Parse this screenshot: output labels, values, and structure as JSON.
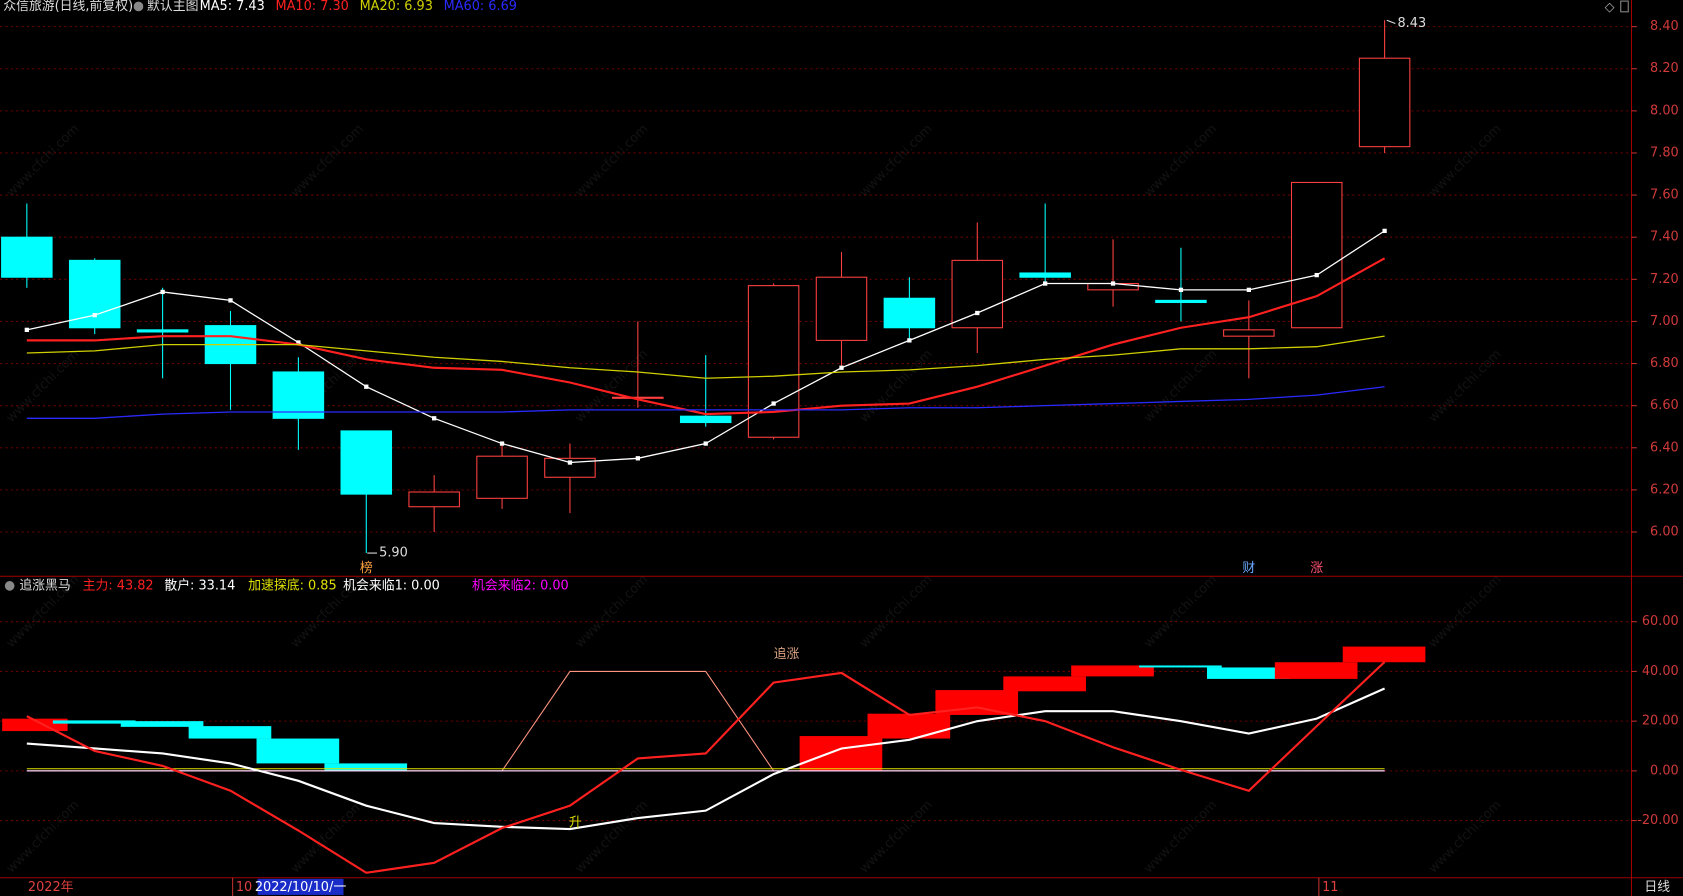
{
  "chart_data": [
    {
      "type": "candlestick",
      "title": "众信旅游(日线,前复权)",
      "subtitle": "默认主图",
      "open": [
        7.4,
        7.29,
        6.96,
        6.98,
        6.76,
        6.48,
        6.12,
        6.16,
        6.26,
        6.64,
        6.55,
        6.45,
        6.91,
        7.11,
        6.97,
        7.23,
        7.15,
        7.1,
        6.93,
        6.97,
        7.83
      ],
      "close": [
        7.21,
        6.97,
        6.95,
        6.8,
        6.54,
        6.18,
        6.19,
        6.36,
        6.35,
        6.64,
        6.52,
        7.17,
        7.21,
        6.97,
        7.29,
        7.21,
        7.18,
        7.09,
        6.96,
        7.66,
        8.25
      ],
      "high": [
        7.56,
        7.3,
        7.16,
        7.05,
        6.83,
        6.48,
        6.27,
        6.42,
        6.42,
        7.0,
        6.84,
        7.18,
        7.33,
        7.21,
        7.47,
        7.56,
        7.39,
        7.35,
        7.1,
        7.66,
        8.43
      ],
      "low": [
        7.16,
        6.94,
        6.73,
        6.58,
        6.39,
        5.9,
        6.0,
        6.11,
        6.09,
        6.59,
        6.5,
        6.44,
        6.79,
        6.91,
        6.85,
        7.19,
        7.07,
        7.0,
        6.73,
        6.97,
        7.8
      ],
      "up_color": "#ff4040",
      "down_color": "#00ffff",
      "max_label": "8.43",
      "min_label": "5.90",
      "series": [
        {
          "name": "MA5: 7.43",
          "color": "#ffffff",
          "values": [
            6.96,
            7.03,
            7.14,
            7.1,
            6.9,
            6.69,
            6.54,
            6.42,
            6.33,
            6.35,
            6.42,
            6.61,
            6.78,
            6.91,
            7.04,
            7.18,
            7.18,
            7.15,
            7.15,
            7.22,
            7.43
          ]
        },
        {
          "name": "MA10: 7.30",
          "color": "#ff2020",
          "values": [
            6.91,
            6.91,
            6.93,
            6.93,
            6.89,
            6.82,
            6.78,
            6.77,
            6.71,
            6.63,
            6.56,
            6.57,
            6.6,
            6.61,
            6.69,
            6.79,
            6.89,
            6.97,
            7.02,
            7.12,
            7.3
          ]
        },
        {
          "name": "MA20: 6.93",
          "color": "#d0d000",
          "values": [
            6.85,
            6.86,
            6.89,
            6.89,
            6.89,
            6.86,
            6.83,
            6.81,
            6.78,
            6.76,
            6.73,
            6.74,
            6.76,
            6.77,
            6.79,
            6.82,
            6.84,
            6.87,
            6.87,
            6.88,
            6.93
          ]
        },
        {
          "name": "MA60: 6.69",
          "color": "#2a2aff",
          "values": [
            6.54,
            6.54,
            6.56,
            6.57,
            6.57,
            6.57,
            6.57,
            6.57,
            6.58,
            6.58,
            6.58,
            6.58,
            6.58,
            6.59,
            6.59,
            6.6,
            6.61,
            6.62,
            6.63,
            6.65,
            6.69
          ]
        }
      ],
      "markers": [
        {
          "index": 5,
          "text": "榜",
          "color": "#ffa040"
        },
        {
          "index": 18,
          "text": "财",
          "color": "#6aa8ff"
        },
        {
          "index": 19,
          "text": "涨",
          "color": "#ff5070"
        }
      ],
      "ylim": [
        5.79,
        8.45
      ],
      "yticks": [
        {
          "value": 6,
          "label": "6.00"
        },
        {
          "value": 6.2,
          "label": "6.20"
        },
        {
          "value": 6.4,
          "label": "6.40"
        },
        {
          "value": 6.6,
          "label": "6.60"
        },
        {
          "value": 6.8,
          "label": "6.80"
        },
        {
          "value": 7,
          "label": "7.00"
        },
        {
          "value": 7.2,
          "label": "7.20"
        },
        {
          "value": 7.4,
          "label": "7.40"
        },
        {
          "value": 7.6,
          "label": "7.60"
        },
        {
          "value": 7.8,
          "label": "7.80"
        },
        {
          "value": 8,
          "label": "8.00"
        },
        {
          "value": 8.2,
          "label": "8.20"
        },
        {
          "value": 8.4,
          "label": "8.40"
        }
      ],
      "grid": true
    },
    {
      "type": "line",
      "title": "追涨黑马",
      "series": [
        {
          "name": "主力: 43.82",
          "color": "#ff2020",
          "values": [
            22,
            8,
            2,
            -8,
            -24,
            -41,
            -37,
            -23,
            -14,
            5,
            7,
            35.5,
            39.4,
            22.5,
            25.5,
            20,
            9.5,
            0.4,
            -8,
            18,
            43.82
          ]
        },
        {
          "name": "散户: 33.14",
          "color": "#ffffff",
          "values": [
            11,
            9,
            7,
            3,
            -4,
            -14,
            -21,
            -22.5,
            -23.4,
            -19,
            -16,
            -1.3,
            9,
            12.5,
            20,
            24,
            24,
            20,
            15,
            21,
            33.14
          ]
        },
        {
          "name": "加速探底: 0.85",
          "color": "#e0e000",
          "values": [
            0.85,
            0.85,
            0.85,
            0.85,
            0.85,
            0.85,
            0.85,
            0.85,
            0.85,
            0.85,
            0.85,
            0.85,
            0.85,
            0.85,
            0.85,
            0.85,
            0.85,
            0.85,
            0.85,
            0.85,
            0.85
          ]
        },
        {
          "name": "机会来临1: 0.00",
          "color": "#ffffff",
          "values": [
            0,
            0,
            0,
            0,
            0,
            0,
            0,
            0,
            0,
            0,
            0,
            0,
            0,
            0,
            0,
            0,
            0,
            0,
            0,
            0,
            0
          ]
        },
        {
          "name": "机会来临2: 0.00",
          "color": "#ff00ff",
          "values": [
            0,
            0,
            0,
            0,
            0,
            0,
            0,
            0,
            0,
            0,
            0,
            0,
            0,
            0,
            0,
            0,
            0,
            0,
            0,
            0,
            0
          ]
        }
      ],
      "signal_line": {
        "name": "追涨",
        "color": "#ff9480",
        "values": [
          0,
          0,
          0,
          0,
          0,
          0,
          0,
          0,
          40,
          40,
          40,
          0,
          0,
          0,
          0,
          0,
          0,
          0,
          0,
          0,
          0
        ]
      },
      "rise_label": {
        "text": "升",
        "index": 8,
        "color": "#e0e000"
      },
      "blocks": {
        "open": [
          16,
          20.3,
          20,
          18,
          13,
          3,
          null,
          null,
          null,
          null,
          null,
          null,
          0,
          13,
          22.5,
          32,
          38,
          42.4,
          41.6,
          37,
          43.7
        ],
        "close": [
          21,
          19,
          17.7,
          13,
          3,
          0,
          null,
          null,
          null,
          null,
          null,
          null,
          14,
          23,
          32.5,
          38,
          42.4,
          41.6,
          37,
          43.7,
          50
        ],
        "up_color": "#ff0000",
        "down_color": "#00ffff"
      },
      "categories": [
        "2022年",
        null,
        null,
        "10",
        "2022/10/10/一",
        null,
        null,
        null,
        null,
        null,
        null,
        null,
        null,
        null,
        null,
        null,
        null,
        null,
        null,
        "11",
        null
      ],
      "selected": 4,
      "period_label": "日线",
      "ylim": [
        -43,
        77
      ],
      "yticks": [
        {
          "value": -20,
          "label": "-20.00"
        },
        {
          "value": 0,
          "label": "0.00"
        },
        {
          "value": 20,
          "label": "20.00"
        },
        {
          "value": 40,
          "label": "40.00"
        },
        {
          "value": 60,
          "label": "60.00"
        }
      ],
      "grid": true
    }
  ],
  "watermark": "www.cfchi.com"
}
